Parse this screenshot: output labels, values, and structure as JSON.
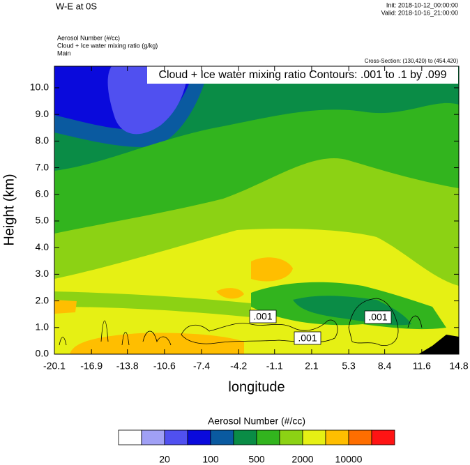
{
  "chart_data": {
    "type": "contour",
    "title": "W-E at 0S",
    "init": "Init: 2018-10-12_00:00:00",
    "valid": "Valid: 2018-10-16_21:00:00",
    "fields": [
      "Aerosol Number   (#/cc)",
      "Cloud + Ice water mixing ratio   (g/kg)",
      "Main"
    ],
    "cross_section": "Cross-Section: (130,420) to (454,420)",
    "contour_info": "Cloud + Ice water mixing ratio Contours: .001 to .1 by .099",
    "contour_labels": [
      ".001",
      ".001",
      ".001"
    ],
    "ylabel": "Height (km)",
    "xlabel": "longitude",
    "xlim": [
      -20.1,
      14.8
    ],
    "ylim": [
      0,
      10.81
    ],
    "xticks": [
      -20.1,
      -16.9,
      -13.8,
      -10.6,
      -7.4,
      -4.2,
      -1.1,
      2.1,
      5.3,
      8.4,
      11.6,
      14.8
    ],
    "yticks": [
      {
        "value": 0,
        "label": "0.0"
      },
      {
        "value": 1,
        "label": "1.0"
      },
      {
        "value": 2,
        "label": "2.0"
      },
      {
        "value": 3,
        "label": "3.0"
      },
      {
        "value": 4,
        "label": "4.0"
      },
      {
        "value": 5,
        "label": "5.0"
      },
      {
        "value": 6,
        "label": "6.0"
      },
      {
        "value": 7,
        "label": "7.0"
      },
      {
        "value": 8,
        "label": "8.0"
      },
      {
        "value": 9,
        "label": "9.0"
      },
      {
        "value": 10,
        "label": "10.0"
      }
    ],
    "colorbar": {
      "title": "Aerosol Number  (#/cc)",
      "colors": [
        "#ffffff",
        "#a0a0f5",
        "#5050f0",
        "#0a0adc",
        "#0a5aa0",
        "#0a8c46",
        "#32b41e",
        "#8cd214",
        "#e6f014",
        "#ffbe00",
        "#ff6e00",
        "#ff1414"
      ],
      "levels": [
        null,
        20,
        null,
        100,
        null,
        500,
        null,
        2000,
        null,
        10000,
        null
      ]
    }
  }
}
